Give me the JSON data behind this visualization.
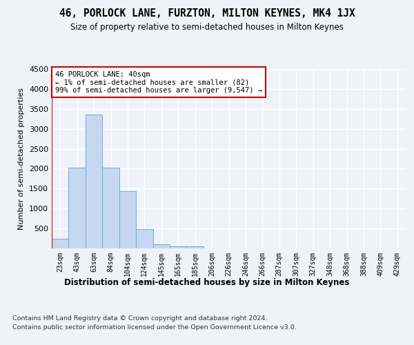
{
  "title": "46, PORLOCK LANE, FURZTON, MILTON KEYNES, MK4 1JX",
  "subtitle": "Size of property relative to semi-detached houses in Milton Keynes",
  "xlabel": "Distribution of semi-detached houses by size in Milton Keynes",
  "ylabel": "Number of semi-detached properties",
  "bar_color": "#c5d8f0",
  "bar_edge_color": "#6aaed6",
  "categories": [
    "23sqm",
    "43sqm",
    "63sqm",
    "84sqm",
    "104sqm",
    "124sqm",
    "145sqm",
    "165sqm",
    "185sqm",
    "206sqm",
    "226sqm",
    "246sqm",
    "266sqm",
    "287sqm",
    "307sqm",
    "327sqm",
    "348sqm",
    "368sqm",
    "388sqm",
    "409sqm",
    "429sqm"
  ],
  "values": [
    250,
    2030,
    3350,
    2030,
    1440,
    480,
    100,
    60,
    50,
    0,
    0,
    0,
    0,
    0,
    0,
    0,
    0,
    0,
    0,
    0,
    0
  ],
  "ylim": [
    0,
    4500
  ],
  "yticks": [
    0,
    500,
    1000,
    1500,
    2000,
    2500,
    3000,
    3500,
    4000,
    4500
  ],
  "marker_color": "#cc0000",
  "annotation_text": "46 PORLOCK LANE: 40sqm\n← 1% of semi-detached houses are smaller (82)\n99% of semi-detached houses are larger (9,547) →",
  "annotation_box_color": "#ffffff",
  "annotation_box_edge": "#cc0000",
  "footer_line1": "Contains HM Land Registry data © Crown copyright and database right 2024.",
  "footer_line2": "Contains public sector information licensed under the Open Government Licence v3.0.",
  "bg_color": "#eef2f9",
  "grid_color": "#ffffff"
}
